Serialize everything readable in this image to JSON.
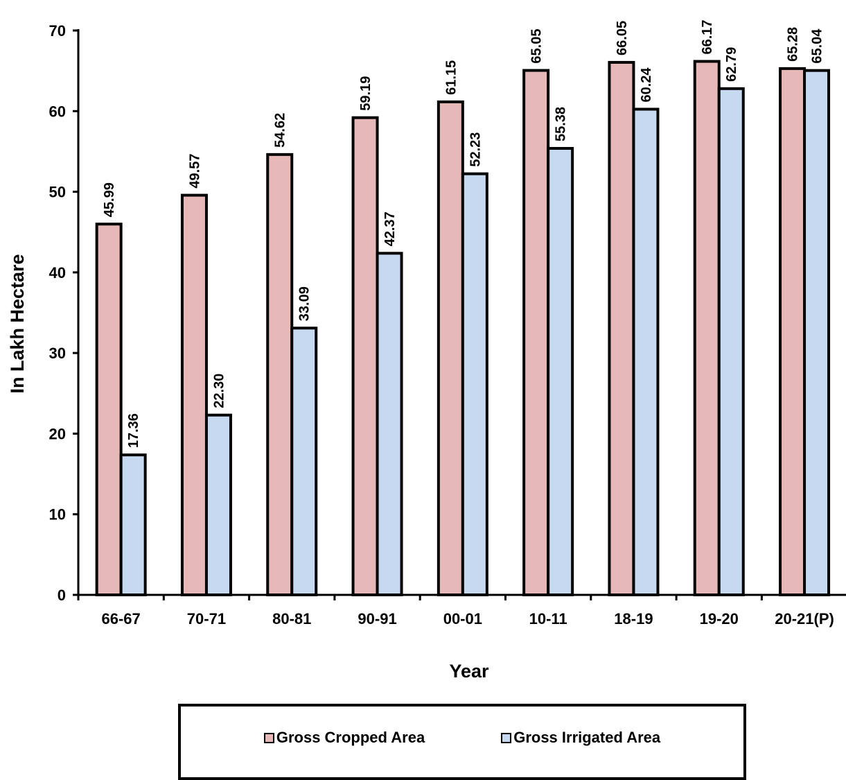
{
  "chart_data": {
    "type": "bar",
    "xlabel": "Year",
    "ylabel": "In Lakh Hectare",
    "ylim": [
      0,
      70
    ],
    "yticks": [
      0,
      10,
      20,
      30,
      40,
      50,
      60,
      70
    ],
    "grid": false,
    "legend_position": "bottom",
    "categories": [
      "66-67",
      "70-71",
      "80-81",
      "90-91",
      "00-01",
      "10-11",
      "18-19",
      "19-20",
      "20-21(P)"
    ],
    "series": [
      {
        "name": "Gross Cropped Area",
        "color": "#e6b8b7",
        "values": [
          45.99,
          49.57,
          54.62,
          59.19,
          61.15,
          65.05,
          66.05,
          66.17,
          65.28
        ],
        "labels": [
          "45.99",
          "49.57",
          "54.62",
          "59.19",
          "61.15",
          "65.05",
          "66.05",
          "66.17",
          "65.28"
        ]
      },
      {
        "name": "Gross Irrigated Area",
        "color": "#c6d9f1",
        "values": [
          17.36,
          22.3,
          33.09,
          42.37,
          52.23,
          55.38,
          60.24,
          62.79,
          65.04
        ],
        "labels": [
          "17.36",
          "22.30",
          "33.09",
          "42.37",
          "52.23",
          "55.38",
          "60.24",
          "62.79",
          "65.04"
        ]
      }
    ]
  }
}
